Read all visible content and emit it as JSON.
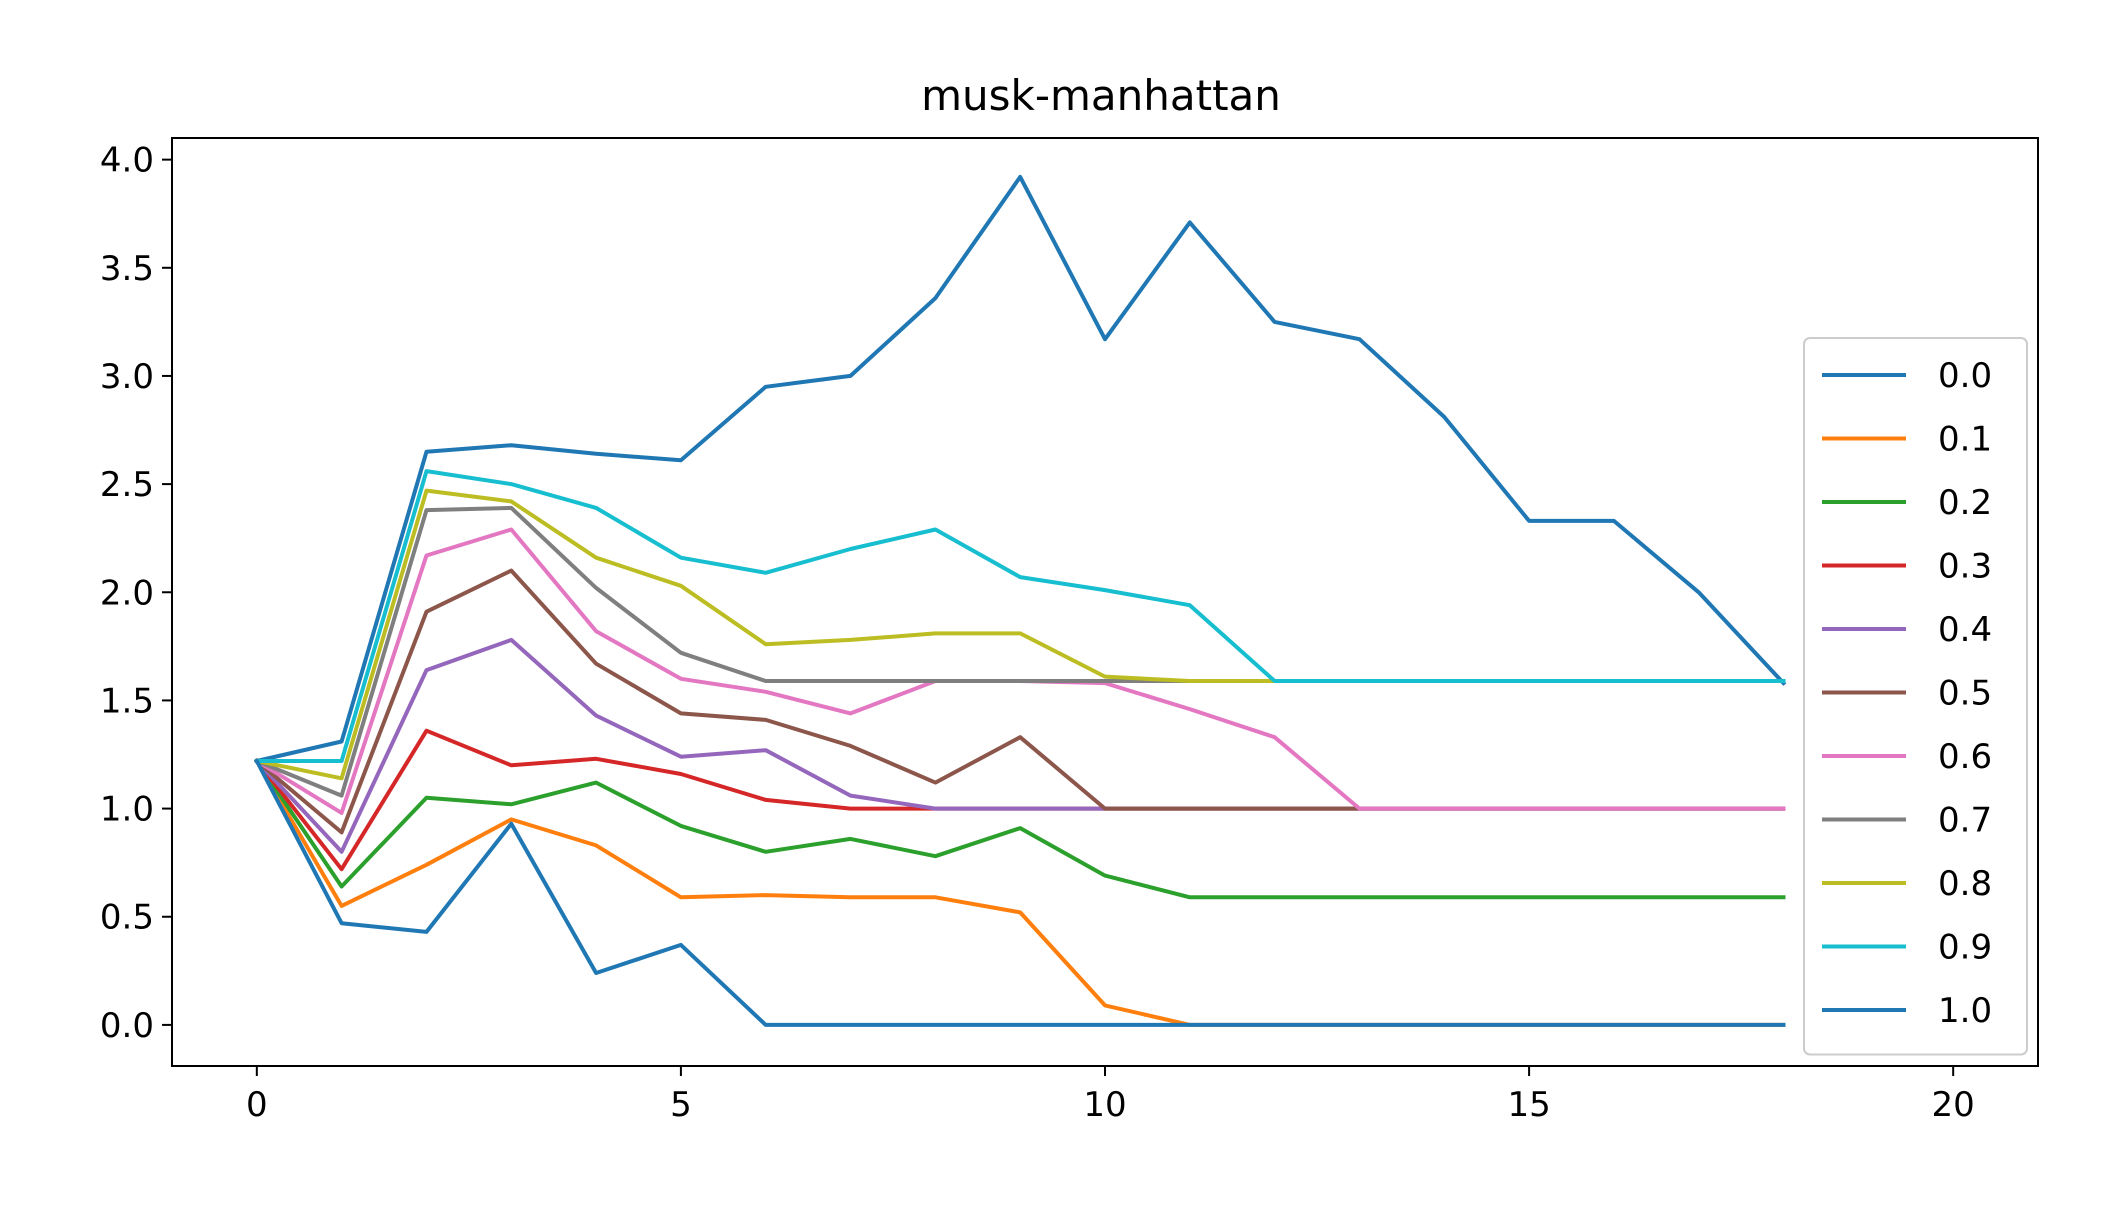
{
  "chart_data": {
    "type": "line",
    "title": "musk-manhattan",
    "xlabel": "",
    "ylabel": "",
    "xlim": [
      -1,
      21
    ],
    "ylim": [
      -0.19,
      4.1
    ],
    "xticks": [
      "0",
      "5",
      "10",
      "15",
      "20"
    ],
    "yticks": [
      "0.0",
      "0.5",
      "1.0",
      "1.5",
      "2.0",
      "2.5",
      "3.0",
      "3.5",
      "4.0"
    ],
    "grid": false,
    "legend_position": "right",
    "x": [
      0,
      1,
      2,
      3,
      4,
      5,
      6,
      7,
      8,
      9,
      10,
      11,
      12,
      13,
      14,
      15,
      16,
      17,
      18
    ],
    "series": [
      {
        "name": "0.0",
        "color": "#1f77b4",
        "values": [
          1.22,
          1.31,
          2.65,
          2.68,
          2.64,
          2.61,
          2.95,
          3.0,
          3.36,
          3.92,
          3.17,
          3.71,
          3.25,
          3.17,
          2.81,
          2.33,
          2.33,
          2.0,
          1.58
        ]
      },
      {
        "name": "0.1",
        "color": "#ff7f0e",
        "values": [
          1.22,
          0.55,
          0.74,
          0.95,
          0.83,
          0.59,
          0.6,
          0.59,
          0.59,
          0.52,
          0.09,
          0.0,
          0.0,
          0.0,
          0.0,
          0.0,
          0.0,
          0.0,
          0.0
        ]
      },
      {
        "name": "0.2",
        "color": "#2ca02c",
        "values": [
          1.22,
          0.64,
          1.05,
          1.02,
          1.12,
          0.92,
          0.8,
          0.86,
          0.78,
          0.91,
          0.69,
          0.59,
          0.59,
          0.59,
          0.59,
          0.59,
          0.59,
          0.59,
          0.59
        ]
      },
      {
        "name": "0.3",
        "color": "#d62728",
        "values": [
          1.22,
          0.72,
          1.36,
          1.2,
          1.23,
          1.16,
          1.04,
          1.0,
          1.0,
          1.0,
          1.0,
          1.0,
          1.0,
          1.0,
          1.0,
          1.0,
          1.0,
          1.0,
          1.0
        ]
      },
      {
        "name": "0.4",
        "color": "#9467bd",
        "values": [
          1.22,
          0.8,
          1.64,
          1.78,
          1.43,
          1.24,
          1.27,
          1.06,
          1.0,
          1.0,
          1.0,
          1.0,
          1.0,
          1.0,
          1.0,
          1.0,
          1.0,
          1.0,
          1.0
        ]
      },
      {
        "name": "0.5",
        "color": "#8c564b",
        "values": [
          1.22,
          0.89,
          1.91,
          2.1,
          1.67,
          1.44,
          1.41,
          1.29,
          1.12,
          1.33,
          1.0,
          1.0,
          1.0,
          1.0,
          1.0,
          1.0,
          1.0,
          1.0,
          1.0
        ]
      },
      {
        "name": "0.6",
        "color": "#e377c2",
        "values": [
          1.22,
          0.98,
          2.17,
          2.29,
          1.82,
          1.6,
          1.54,
          1.44,
          1.59,
          1.59,
          1.58,
          1.46,
          1.33,
          1.0,
          1.0,
          1.0,
          1.0,
          1.0,
          1.0
        ]
      },
      {
        "name": "0.7",
        "color": "#7f7f7f",
        "values": [
          1.22,
          1.06,
          2.38,
          2.39,
          2.02,
          1.72,
          1.59,
          1.59,
          1.59,
          1.59,
          1.59,
          1.59,
          1.59,
          1.59,
          1.59,
          1.59,
          1.59,
          1.59,
          1.59
        ]
      },
      {
        "name": "0.8",
        "color": "#bcbd22",
        "values": [
          1.22,
          1.14,
          2.47,
          2.42,
          2.16,
          2.03,
          1.76,
          1.78,
          1.81,
          1.81,
          1.61,
          1.59,
          1.59,
          1.59,
          1.59,
          1.59,
          1.59,
          1.59,
          1.59
        ]
      },
      {
        "name": "0.9",
        "color": "#17becf",
        "values": [
          1.22,
          1.22,
          2.56,
          2.5,
          2.39,
          2.16,
          2.09,
          2.2,
          2.29,
          2.07,
          2.01,
          1.94,
          1.59,
          1.59,
          1.59,
          1.59,
          1.59,
          1.59,
          1.59
        ]
      },
      {
        "name": "1.0",
        "color": "#1f77b4",
        "values": [
          1.22,
          0.47,
          0.43,
          0.93,
          0.24,
          0.37,
          0.0,
          0.0,
          0.0,
          0.0,
          0.0,
          0.0,
          0.0,
          0.0,
          0.0,
          0.0,
          0.0,
          0.0,
          0.0
        ]
      }
    ]
  }
}
